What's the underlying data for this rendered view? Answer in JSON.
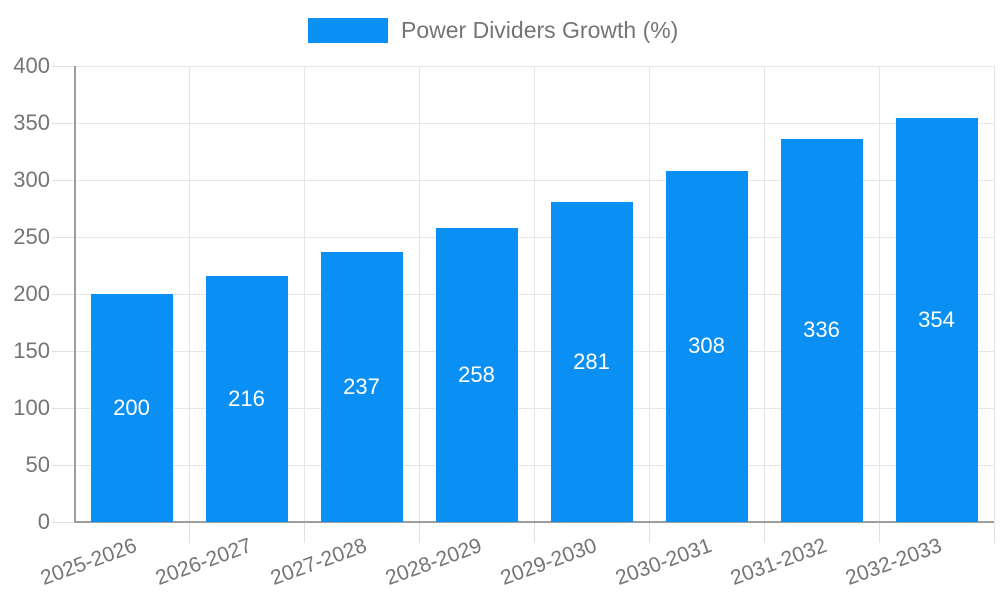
{
  "chart_data": {
    "type": "bar",
    "title": "Power Dividers Growth (%)",
    "legend": {
      "label": "Power Dividers Growth (%)",
      "position": "top-center"
    },
    "categories": [
      "2025-2026",
      "2026-2027",
      "2027-2028",
      "2028-2029",
      "2029-2030",
      "2030-2031",
      "2031-2032",
      "2032-2033"
    ],
    "series": [
      {
        "name": "Power Dividers Growth (%)",
        "values": [
          200,
          216,
          237,
          258,
          281,
          308,
          336,
          354
        ]
      }
    ],
    "value_labels_shown": true,
    "xlabel": "",
    "ylabel": "",
    "ylim": [
      0,
      400
    ],
    "ytick_step": 50,
    "grid": "on",
    "x_label_rotation_deg": -20,
    "colors": {
      "bar": "#0A90F5",
      "value_label": "#FFFFFF",
      "axis_text": "#757575",
      "legend_text": "#757575",
      "grid_line": "#E6E6E6",
      "tick_line": "#E0E0E0",
      "axis_line": "#9E9E9E",
      "background": "#FFFFFF"
    }
  }
}
